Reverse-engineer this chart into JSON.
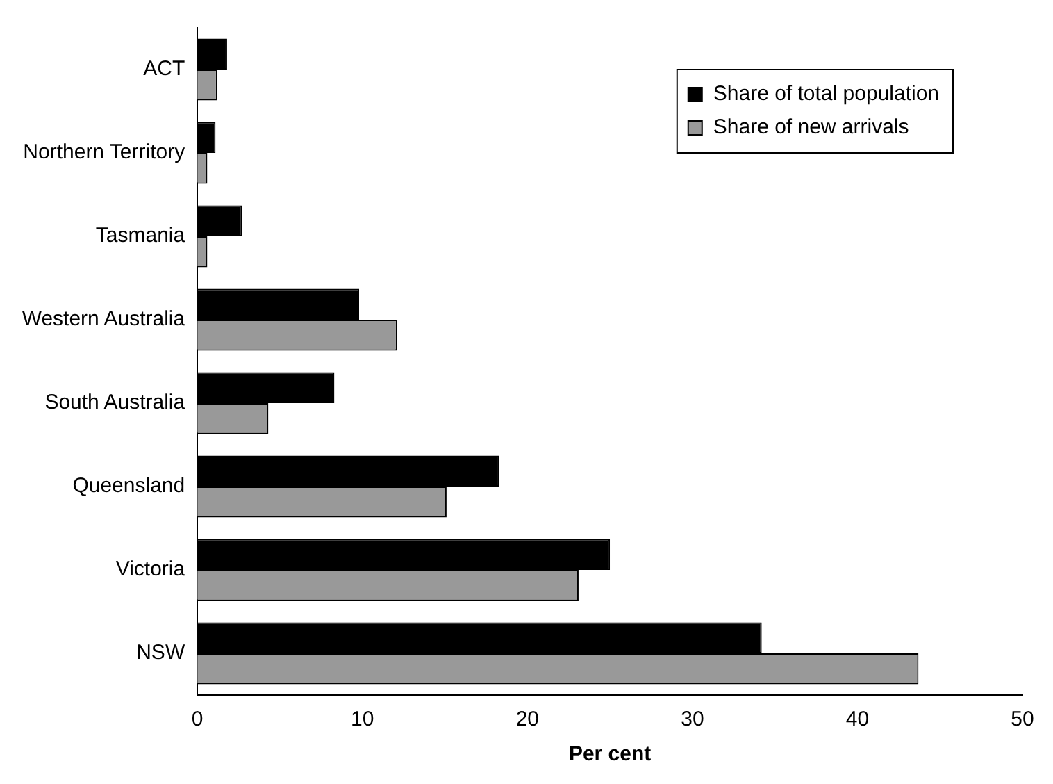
{
  "chart_data": {
    "type": "bar",
    "orientation": "horizontal",
    "xlabel": "Per cent",
    "categories": [
      "ACT",
      "Northern Territory",
      "Tasmania",
      "Western Australia",
      "South Australia",
      "Queensland",
      "Victoria",
      "NSW"
    ],
    "series": [
      {
        "name": "Share of total population",
        "color": "#000000",
        "values": [
          1.8,
          1.1,
          2.7,
          9.8,
          8.3,
          18.3,
          25.0,
          34.2
        ]
      },
      {
        "name": "Share of new arrivals",
        "color": "#999999",
        "values": [
          1.2,
          0.6,
          0.6,
          12.1,
          4.3,
          15.1,
          23.1,
          43.7
        ]
      }
    ],
    "xlim": [
      0,
      50
    ],
    "xticks": [
      0,
      10,
      20,
      30,
      40,
      50
    ],
    "grid": false,
    "legend": "top right"
  }
}
